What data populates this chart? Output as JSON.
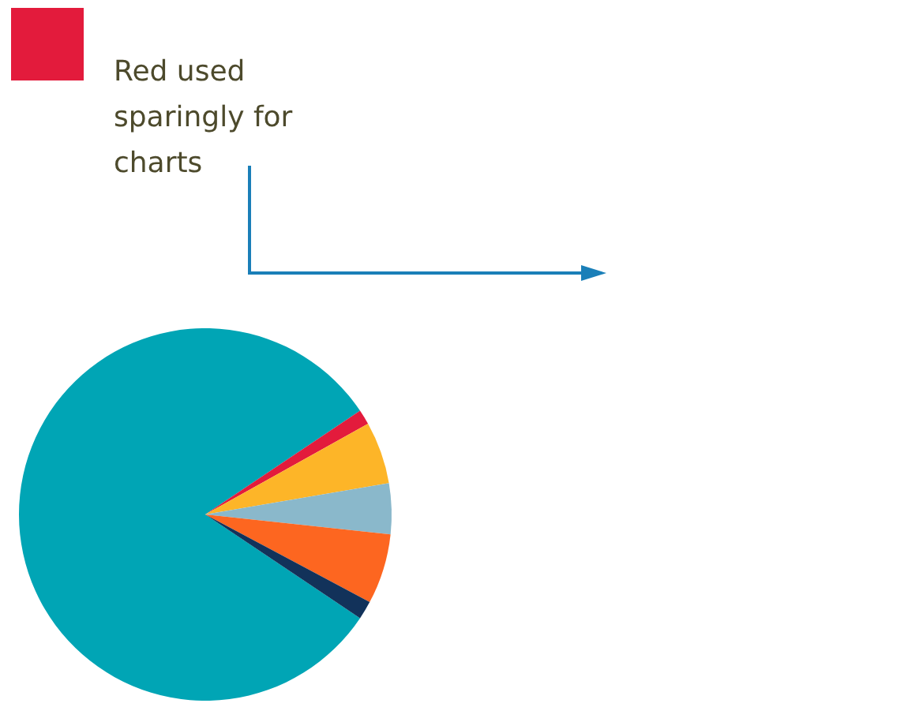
{
  "chart_data": {
    "type": "pie",
    "categories": [
      null,
      null,
      null,
      null,
      null,
      null
    ],
    "values": [
      81.2,
      1.3,
      5.4,
      4.4,
      6.1,
      1.6
    ],
    "colors": [
      "#00a5b5",
      "#e31b3c",
      "#fdb528",
      "#8ab8cb",
      "#fd6620",
      "#12325a"
    ],
    "annotations": [
      "Red used sparingly for charts"
    ]
  }
}
